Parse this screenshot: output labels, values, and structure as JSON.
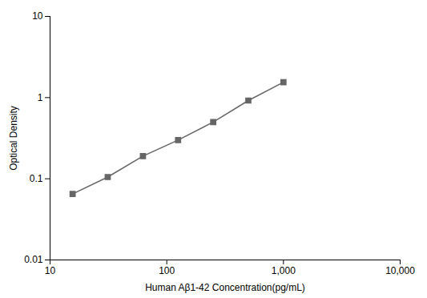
{
  "chart_data": {
    "type": "line",
    "x": [
      15.6,
      31.2,
      62.5,
      125,
      250,
      500,
      1000
    ],
    "values": [
      0.065,
      0.105,
      0.19,
      0.3,
      0.5,
      0.92,
      1.55
    ],
    "xlabel": "Human Aβ1-42 Concentration(pg/mL)",
    "ylabel": "Optical Density",
    "xlim": [
      10,
      10000
    ],
    "ylim": [
      0.01,
      10
    ],
    "xticks": [
      10,
      100,
      {
        "value": 1000,
        "label": "1,000"
      },
      {
        "value": 10000,
        "label": "10,000"
      }
    ],
    "yticks": [
      0.01,
      0.1,
      1,
      10
    ],
    "log": true,
    "grid": false,
    "color": "#666666",
    "marker": "square"
  }
}
